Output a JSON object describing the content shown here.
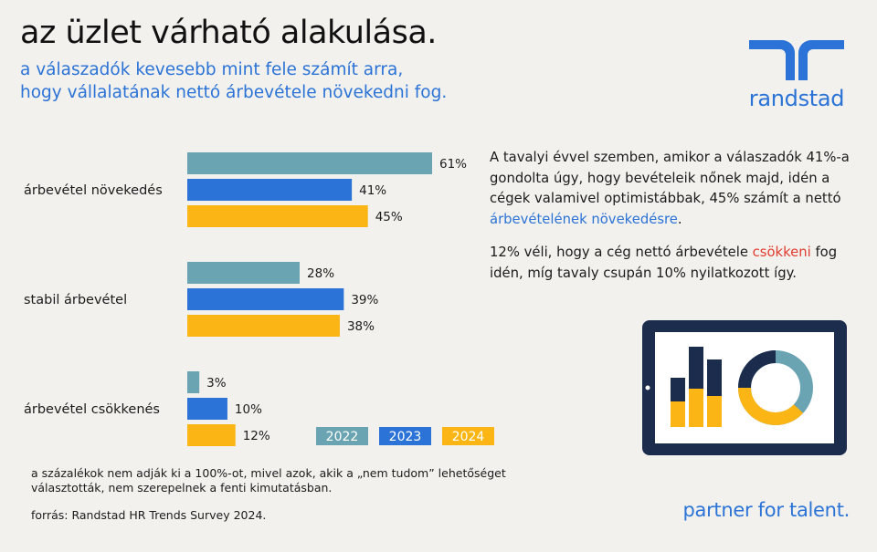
{
  "header": {
    "title": "az üzlet várható alakulása.",
    "subtitle_line1": "a válaszadók kevesebb mint fele számít arra,",
    "subtitle_line2": "hogy vállalatának nettó árbevétele növekedni fog."
  },
  "logo": {
    "word": "randstad"
  },
  "chart_data": {
    "type": "bar",
    "orientation": "horizontal",
    "categories": [
      "árbevétel növekedés",
      "stabil árbevétel",
      "árbevétel csökkenés"
    ],
    "series": [
      {
        "name": "2022",
        "color": "#6aa3b2",
        "values": [
          61,
          28,
          3
        ]
      },
      {
        "name": "2023",
        "color": "#2b73d6",
        "values": [
          41,
          39,
          10
        ]
      },
      {
        "name": "2024",
        "color": "#fbb515",
        "values": [
          45,
          38,
          12
        ]
      }
    ],
    "value_suffix": "%",
    "xlim": [
      0,
      61
    ],
    "legend_position": "bottom-right"
  },
  "text": {
    "p1_part1": "A tavalyi évvel szemben, amikor a válaszadók 41%-a gondolta úgy, hogy bevételeik nőnek majd, idén a cégek valamivel optimistábbak, 45% számít a nettó ",
    "p1_highlight": "árbevételének növekedésre",
    "p1_part2": ".",
    "p2_part1": "12% véli, hogy a cég nettó árbevétele ",
    "p2_highlight": "csökkeni",
    "p2_part2": " fog idén, míg tavaly csupán 10% nyilatkozott így."
  },
  "colors": {
    "accent_blue": "#2b73d6",
    "highlight_red": "#e23c30",
    "navy": "#1c2c4d",
    "teal": "#6aa3b2",
    "yellow": "#fbb515"
  },
  "footer": {
    "footnote": "a százalékok nem adják ki a 100%-ot, mivel azok, akik a „nem tudom” lehetőséget választották, nem szerepelnek a fenti kimutatásban.",
    "source": "forrás: Randstad HR Trends Survey 2024.",
    "tagline": "partner for talent."
  }
}
